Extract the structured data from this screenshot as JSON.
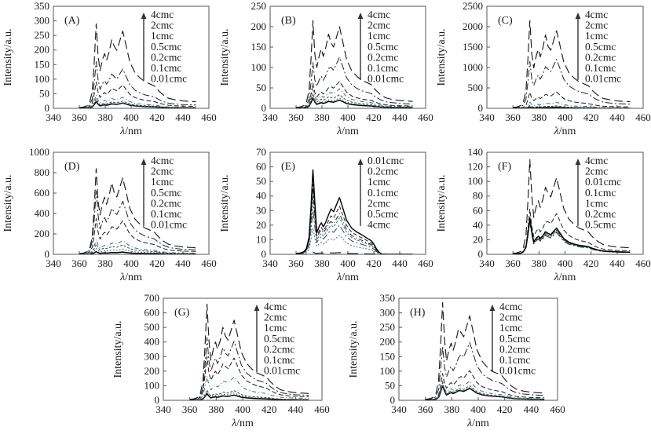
{
  "figure": {
    "xlabel": "λ/nm",
    "ylabel": "Intensity/a.u.",
    "axis_color": "#555555",
    "text_color": "#1a1a1a",
    "background": "#ffffff"
  },
  "chart_data": [
    {
      "type": "line",
      "panel": "A",
      "title": "(A)",
      "xlabel": "λ/nm",
      "ylabel": "Intensity/a.u.",
      "xlim": [
        340,
        460
      ],
      "ylim": [
        0,
        350
      ],
      "xticks": [
        340,
        360,
        380,
        400,
        420,
        440,
        460
      ],
      "yticks": [
        0,
        50,
        100,
        150,
        200,
        250,
        300,
        350
      ],
      "legend_arrow": "up",
      "cutoff": false,
      "series": [
        {
          "name": "4cmc",
          "p373": 290,
          "p385": 235,
          "p394": 265,
          "dash": "11,5",
          "width": 1.15,
          "color": "#1b1b1b"
        },
        {
          "name": "2cmc",
          "p373": 160,
          "p385": 118,
          "p394": 135,
          "dash": "9,3,2,3",
          "width": 1,
          "color": "#222222"
        },
        {
          "name": "1cmc",
          "p373": 90,
          "p385": 68,
          "p394": 80,
          "dash": "6,3",
          "width": 1,
          "color": "#1b1b1b"
        },
        {
          "name": "0.5cmc",
          "p373": 46,
          "p385": 34,
          "p394": 38,
          "dash": "5,3,1,3",
          "width": 1,
          "color": "#3f6e79"
        },
        {
          "name": "0.2cmc",
          "p373": 33,
          "p385": 22,
          "p394": 25,
          "dash": "3,2",
          "width": 1,
          "color": "#444444"
        },
        {
          "name": "0.1cmc",
          "p373": 27,
          "p385": 18,
          "p394": 20,
          "dash": "2,2",
          "width": 1,
          "color": "#4e6f74"
        },
        {
          "name": "0.01cmc",
          "p373": 23,
          "p385": 15,
          "p394": 18,
          "dash": "",
          "width": 1.5,
          "color": "#000000"
        }
      ]
    },
    {
      "type": "line",
      "panel": "B",
      "title": "(B)",
      "xlabel": "λ/nm",
      "ylabel": "Intensity/a.u.",
      "xlim": [
        340,
        460
      ],
      "ylim": [
        0,
        250
      ],
      "xticks": [
        340,
        360,
        380,
        400,
        420,
        440,
        460
      ],
      "yticks": [
        0,
        50,
        100,
        150,
        200,
        250
      ],
      "legend_arrow": "up",
      "cutoff": false,
      "series": [
        {
          "name": "4cmc",
          "p373": 215,
          "p385": 182,
          "p394": 200,
          "dash": "11,5",
          "width": 1.15,
          "color": "#1b1b1b"
        },
        {
          "name": "2cmc",
          "p373": 112,
          "p385": 98,
          "p394": 125,
          "dash": "9,3,2,3",
          "width": 1,
          "color": "#222222"
        },
        {
          "name": "1cmc",
          "p373": 62,
          "p385": 50,
          "p394": 66,
          "dash": "6,3",
          "width": 1,
          "color": "#1b1b1b"
        },
        {
          "name": "0.5cmc",
          "p373": 46,
          "p385": 38,
          "p394": 48,
          "dash": "5,3,1,3",
          "width": 1,
          "color": "#3f6e79"
        },
        {
          "name": "0.2cmc",
          "p373": 36,
          "p385": 28,
          "p394": 33,
          "dash": "3,2",
          "width": 1,
          "color": "#444444"
        },
        {
          "name": "0.1cmc",
          "p373": 29,
          "p385": 21,
          "p394": 25,
          "dash": "2,2",
          "width": 1,
          "color": "#4e6f74"
        },
        {
          "name": "0.01cmc",
          "p373": 25,
          "p385": 17,
          "p394": 20,
          "dash": "",
          "width": 1.5,
          "color": "#000000"
        }
      ]
    },
    {
      "type": "line",
      "panel": "C",
      "title": "(C)",
      "xlabel": "λ/nm",
      "ylabel": "Intensity/a.u.",
      "xlim": [
        340,
        460
      ],
      "ylim": [
        0,
        2500
      ],
      "xticks": [
        340,
        360,
        380,
        400,
        420,
        440,
        460
      ],
      "yticks": [
        0,
        500,
        1000,
        1500,
        2000,
        2500
      ],
      "legend_arrow": "up",
      "cutoff": false,
      "series": [
        {
          "name": "4cmc",
          "p373": 2150,
          "p385": 1800,
          "p394": 1900,
          "dash": "11,5",
          "width": 1.15,
          "color": "#1b1b1b"
        },
        {
          "name": "2cmc",
          "p373": 1150,
          "p385": 1020,
          "p394": 1200,
          "dash": "9,3,2,3",
          "width": 1,
          "color": "#222222"
        },
        {
          "name": "1cmc",
          "p373": 390,
          "p385": 340,
          "p394": 400,
          "dash": "6,3",
          "width": 1,
          "color": "#1b1b1b"
        },
        {
          "name": "0.5cmc",
          "p373": 150,
          "p385": 120,
          "p394": 150,
          "dash": "5,3,1,3",
          "width": 1,
          "color": "#3f6e79"
        },
        {
          "name": "0.2cmc",
          "p373": 70,
          "p385": 50,
          "p394": 60,
          "dash": "3,2",
          "width": 1,
          "color": "#444444"
        },
        {
          "name": "0.1cmc",
          "p373": 45,
          "p385": 30,
          "p394": 38,
          "dash": "2,2",
          "width": 1,
          "color": "#4e6f74"
        },
        {
          "name": "0.01cmc",
          "p373": 30,
          "p385": 20,
          "p394": 26,
          "dash": "",
          "width": 1.5,
          "color": "#000000"
        }
      ]
    },
    {
      "type": "line",
      "panel": "D",
      "title": "(D)",
      "xlabel": "λ/nm",
      "ylabel": "Intensity/a.u.",
      "xlim": [
        340,
        460
      ],
      "ylim": [
        0,
        1000
      ],
      "xticks": [
        340,
        360,
        380,
        400,
        420,
        440,
        460
      ],
      "yticks": [
        0,
        200,
        400,
        600,
        800,
        1000
      ],
      "legend_arrow": "up",
      "cutoff": false,
      "series": [
        {
          "name": "4cmc",
          "p373": 840,
          "p385": 700,
          "p394": 750,
          "dash": "11,5",
          "width": 1.15,
          "color": "#1b1b1b"
        },
        {
          "name": "2cmc",
          "p373": 620,
          "p385": 450,
          "p394": 520,
          "dash": "9,3,2,3",
          "width": 1,
          "color": "#222222"
        },
        {
          "name": "1cmc",
          "p373": 350,
          "p385": 270,
          "p394": 330,
          "dash": "6,3",
          "width": 1,
          "color": "#1b1b1b"
        },
        {
          "name": "0.5cmc",
          "p373": 145,
          "p385": 110,
          "p394": 135,
          "dash": "5,3,1,3",
          "width": 1,
          "color": "#3f6e79"
        },
        {
          "name": "0.2cmc",
          "p373": 100,
          "p385": 78,
          "p394": 92,
          "dash": "3,2",
          "width": 1,
          "color": "#444444"
        },
        {
          "name": "0.1cmc",
          "p373": 58,
          "p385": 44,
          "p394": 52,
          "dash": "2,2",
          "width": 1,
          "color": "#4e6f74"
        },
        {
          "name": "0.01cmc",
          "p373": 26,
          "p385": 18,
          "p394": 22,
          "dash": "",
          "width": 1.5,
          "color": "#000000"
        }
      ]
    },
    {
      "type": "line",
      "panel": "E",
      "title": "(E)",
      "xlabel": "λ/nm",
      "ylabel": "Intensity/a.u.",
      "xlim": [
        340,
        460
      ],
      "ylim": [
        0,
        70
      ],
      "xticks": [
        340,
        360,
        380,
        400,
        420,
        440,
        460
      ],
      "yticks": [
        0,
        10,
        20,
        30,
        40,
        50,
        60,
        70
      ],
      "legend_arrow": "up",
      "cutoff": true,
      "series": [
        {
          "name": "0.01cmc",
          "p373": 58,
          "p385": 27,
          "p394": 39,
          "dash": "",
          "width": 1.4,
          "color": "#000000"
        },
        {
          "name": "0.2cmc",
          "p373": 48,
          "p385": 23,
          "p394": 33,
          "dash": "5,3",
          "width": 1,
          "color": "#222222"
        },
        {
          "name": "1cmc",
          "p373": 44,
          "p385": 21,
          "p394": 28,
          "dash": "6,3,1,3",
          "width": 1,
          "color": "#1b1b1b"
        },
        {
          "name": "0.1cmc",
          "p373": 38,
          "p385": 18,
          "p394": 25,
          "dash": "3,2",
          "width": 1,
          "color": "#3f6e79"
        },
        {
          "name": "2cmc",
          "p373": 30,
          "p385": 15,
          "p394": 20,
          "dash": "9,3,2,3",
          "width": 1,
          "color": "#444444"
        },
        {
          "name": "0.5cmc",
          "p373": 18,
          "p385": 10,
          "p394": 13,
          "dash": "2,2",
          "width": 1,
          "color": "#4e6f74"
        },
        {
          "name": "4cmc",
          "p373": 1.5,
          "p385": 1.2,
          "p394": 1.2,
          "dash": "14,8",
          "width": 1.1,
          "color": "#1b1b1b"
        }
      ]
    },
    {
      "type": "line",
      "panel": "F",
      "title": "(F)",
      "xlabel": "λ/nm",
      "ylabel": "Intensity/a.u.",
      "xlim": [
        340,
        460
      ],
      "ylim": [
        0,
        140
      ],
      "xticks": [
        340,
        360,
        380,
        400,
        420,
        440,
        460
      ],
      "yticks": [
        0,
        20,
        40,
        60,
        80,
        100,
        120,
        140
      ],
      "legend_arrow": "up",
      "cutoff": false,
      "series": [
        {
          "name": "4cmc",
          "p373": 130,
          "p385": 92,
          "p394": 105,
          "dash": "11,5",
          "width": 1.15,
          "color": "#1b1b1b"
        },
        {
          "name": "2cmc",
          "p373": 62,
          "p385": 44,
          "p394": 56,
          "dash": "6,3",
          "width": 1,
          "color": "#222222"
        },
        {
          "name": "0.01cmc",
          "p373": 50,
          "p385": 31,
          "p394": 36,
          "dash": "",
          "width": 1.5,
          "color": "#000000"
        },
        {
          "name": "0.1cmc",
          "p373": 48,
          "p385": 29,
          "p394": 34,
          "dash": "5,3,1,3",
          "width": 1,
          "color": "#3f6e79"
        },
        {
          "name": "1cmc",
          "p373": 47,
          "p385": 28,
          "p394": 33,
          "dash": "3,2",
          "width": 1,
          "color": "#444444"
        },
        {
          "name": "0.2cmc",
          "p373": 45,
          "p385": 27,
          "p394": 32,
          "dash": "2,2",
          "width": 1,
          "color": "#4e6f74"
        },
        {
          "name": "0.5cmc",
          "p373": 44,
          "p385": 26,
          "p394": 30,
          "dash": "9,3,2,3",
          "width": 1,
          "color": "#1b1b1b"
        }
      ]
    },
    {
      "type": "line",
      "panel": "G",
      "title": "(G)",
      "xlabel": "λ/nm",
      "ylabel": "Intensity/a.u.",
      "xlim": [
        340,
        460
      ],
      "ylim": [
        0,
        700
      ],
      "xticks": [
        340,
        360,
        380,
        400,
        420,
        440,
        460
      ],
      "yticks": [
        0,
        100,
        200,
        300,
        400,
        500,
        600,
        700
      ],
      "legend_arrow": "up",
      "cutoff": false,
      "series": [
        {
          "name": "4cmc",
          "p373": 660,
          "p385": 500,
          "p394": 550,
          "dash": "11,5",
          "width": 1.15,
          "color": "#1b1b1b"
        },
        {
          "name": "2cmc",
          "p373": 430,
          "p385": 360,
          "p394": 405,
          "dash": "9,3,2,3",
          "width": 1,
          "color": "#222222"
        },
        {
          "name": "1cmc",
          "p373": 300,
          "p385": 250,
          "p394": 290,
          "dash": "6,3",
          "width": 1,
          "color": "#1b1b1b"
        },
        {
          "name": "0.5cmc",
          "p373": 165,
          "p385": 130,
          "p394": 160,
          "dash": "5,3,1,3",
          "width": 1,
          "color": "#3f6e79"
        },
        {
          "name": "0.2cmc",
          "p373": 72,
          "p385": 56,
          "p394": 66,
          "dash": "3,2",
          "width": 1,
          "color": "#444444"
        },
        {
          "name": "0.1cmc",
          "p373": 56,
          "p385": 42,
          "p394": 50,
          "dash": "2,2",
          "width": 1,
          "color": "#4e6f74"
        },
        {
          "name": "0.01cmc",
          "p373": 46,
          "p385": 30,
          "p394": 36,
          "dash": "",
          "width": 1.5,
          "color": "#000000"
        }
      ]
    },
    {
      "type": "line",
      "panel": "H",
      "title": "(H)",
      "xlabel": "λ/nm",
      "ylabel": "Intensity/a.u.",
      "xlim": [
        340,
        460
      ],
      "ylim": [
        0,
        350
      ],
      "xticks": [
        340,
        360,
        380,
        400,
        420,
        440,
        460
      ],
      "yticks": [
        0,
        50,
        100,
        150,
        200,
        250,
        300,
        350
      ],
      "legend_arrow": "up",
      "cutoff": false,
      "series": [
        {
          "name": "4cmc",
          "p373": 335,
          "p385": 245,
          "p394": 290,
          "dash": "11,5",
          "width": 1.15,
          "color": "#1b1b1b"
        },
        {
          "name": "2cmc",
          "p373": 185,
          "p385": 145,
          "p394": 198,
          "dash": "9,3,2,3",
          "width": 1,
          "color": "#222222"
        },
        {
          "name": "1cmc",
          "p373": 92,
          "p385": 76,
          "p394": 102,
          "dash": "6,3",
          "width": 1,
          "color": "#1b1b1b"
        },
        {
          "name": "0.5cmc",
          "p373": 66,
          "p385": 50,
          "p394": 66,
          "dash": "5,3,1,3",
          "width": 1,
          "color": "#3f6e79"
        },
        {
          "name": "0.2cmc",
          "p373": 60,
          "p385": 40,
          "p394": 50,
          "dash": "3,2",
          "width": 1,
          "color": "#444444"
        },
        {
          "name": "0.1cmc",
          "p373": 55,
          "p385": 36,
          "p394": 44,
          "dash": "2,2",
          "width": 1,
          "color": "#4e6f74"
        },
        {
          "name": "0.01cmc",
          "p373": 50,
          "p385": 33,
          "p394": 41,
          "dash": "",
          "width": 1.5,
          "color": "#000000"
        }
      ]
    }
  ]
}
